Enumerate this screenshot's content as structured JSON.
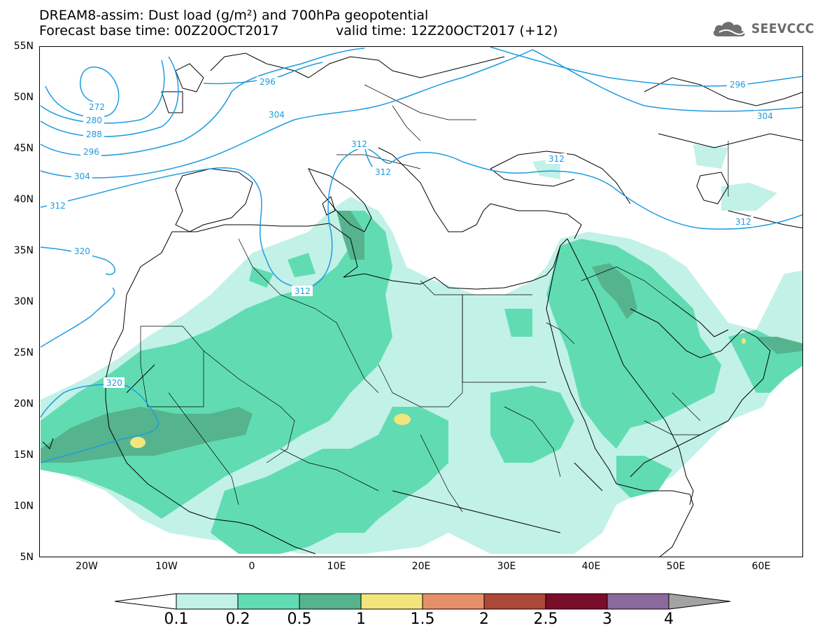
{
  "title": {
    "line1": "DREAM8-assim: Dust load (g/m²) and 700hPa geopotential",
    "line2_base": "Forecast base time: 00Z20OCT2017",
    "line2_valid": "valid time: 12Z20OCT2017 (+12)"
  },
  "logo": {
    "text": "SEEVCCC",
    "icon": "cloud-icon"
  },
  "map": {
    "lon_range": [
      -25,
      65
    ],
    "lat_range": [
      5,
      55
    ],
    "lat_labels": [
      "55N",
      "50N",
      "45N",
      "40N",
      "35N",
      "30N",
      "25N",
      "20N",
      "15N",
      "10N",
      "5N"
    ],
    "lon_labels": [
      "20W",
      "10W",
      "0",
      "10E",
      "20E",
      "30E",
      "40E",
      "50E",
      "60E"
    ],
    "contour_labels": [
      "272",
      "280",
      "288",
      "296",
      "304",
      "312",
      "320",
      "296",
      "304",
      "312",
      "312",
      "312",
      "312",
      "320",
      "296",
      "304",
      "312"
    ],
    "contour_color": "#1e9be0",
    "coast_color": "#000000"
  },
  "colorbar": {
    "labels": [
      "0.1",
      "0.2",
      "0.5",
      "1",
      "1.5",
      "2",
      "2.5",
      "3",
      "4"
    ],
    "colors": [
      "#ffffff",
      "#c2f1e8",
      "#61dcb2",
      "#55b48d",
      "#f2e57e",
      "#e6906a",
      "#ac4837",
      "#7a0d2a",
      "#8a6a9c",
      "#a3a3a3"
    ]
  }
}
